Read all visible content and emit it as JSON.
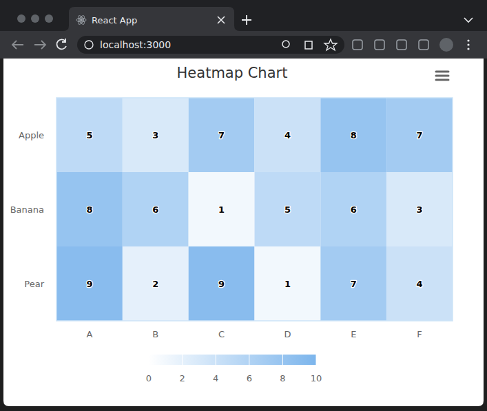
{
  "browser": {
    "tab_title": "React App",
    "url": "localhost:3000"
  },
  "chart_data": {
    "type": "heatmap",
    "title": "Heatmap Chart",
    "categories": [
      "A",
      "B",
      "C",
      "D",
      "E",
      "F"
    ],
    "y_categories": [
      "Apple",
      "Banana",
      "Pear"
    ],
    "values": [
      [
        5,
        3,
        7,
        4,
        8,
        7
      ],
      [
        8,
        6,
        1,
        5,
        6,
        3
      ],
      [
        9,
        2,
        9,
        1,
        7,
        4
      ]
    ],
    "color": "#7cb5ec",
    "data_labels": true,
    "colorbar": {
      "range": [
        0,
        10
      ],
      "ticks": [
        0,
        2,
        4,
        6,
        8,
        10
      ]
    }
  }
}
